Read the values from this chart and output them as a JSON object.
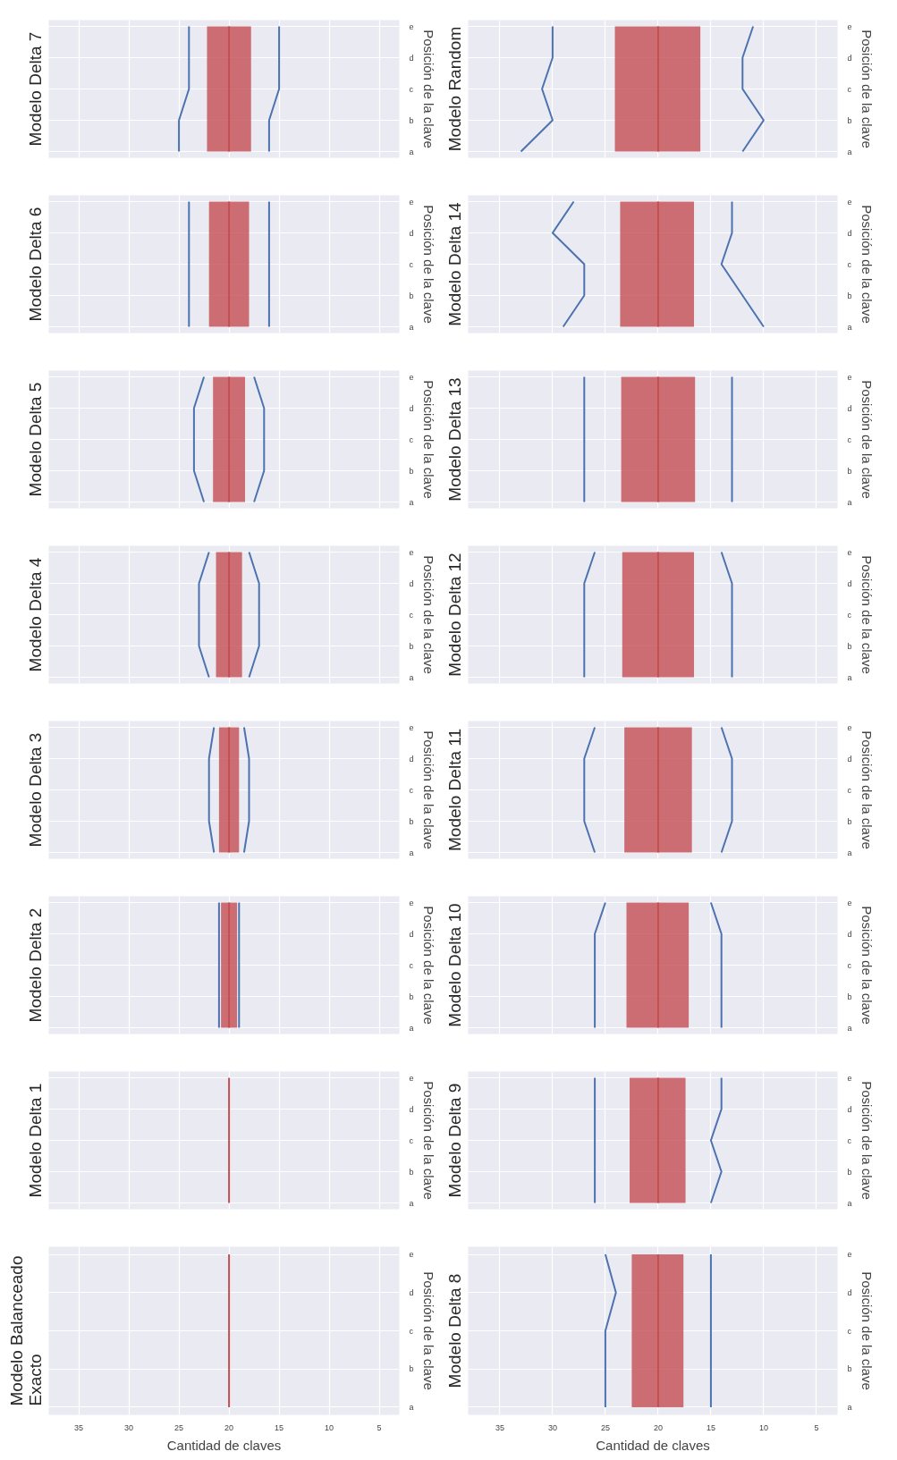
{
  "chart_data": [
    {
      "type": "line",
      "orientation": "horizontal",
      "title": "Modelo Balanceado Exacto",
      "xlabel": "Cantidad de claves",
      "ylabel": "Posición de la clave",
      "categories": [
        "e",
        "d",
        "c",
        "b",
        "a"
      ],
      "xlim": [
        38,
        3
      ],
      "xticks": [
        35,
        30,
        25,
        20,
        15,
        10,
        5
      ],
      "grid": true,
      "series": [
        {
          "color": "#c44e52",
          "values": [
            20,
            20,
            20,
            20,
            20
          ]
        }
      ]
    },
    {
      "type": "line",
      "orientation": "horizontal",
      "title": "Modelo Delta 1",
      "ylabel": "Posición de la clave",
      "categories": [
        "e",
        "d",
        "c",
        "b",
        "a"
      ],
      "xlim": [
        38,
        3
      ],
      "xticks": [
        35,
        30,
        25,
        20,
        15,
        10,
        5
      ],
      "grid": true,
      "tick_labels": "y",
      "series": [
        {
          "color": "#c44e52",
          "values": [
            20,
            20,
            20,
            20,
            20
          ]
        }
      ]
    },
    {
      "type": "line",
      "orientation": "horizontal",
      "title": "Modelo Delta 2",
      "ylabel": "Posición de la clave",
      "categories": [
        "e",
        "d",
        "c",
        "b",
        "a"
      ],
      "xlim": [
        38,
        3
      ],
      "xticks": [
        35,
        30,
        25,
        20,
        15,
        10,
        5
      ],
      "grid": true,
      "tick_labels": "y",
      "series": [
        {
          "color": "#c44e52",
          "values": [
            20,
            20,
            20,
            20,
            20
          ],
          "lower": [
            19.2,
            19.2,
            19.2,
            19.2,
            19.2
          ],
          "upper": [
            20.8,
            20.8,
            20.8,
            20.8,
            20.8
          ]
        },
        {
          "color": "#4c72b0",
          "values": [
            21,
            21,
            21,
            21,
            21
          ]
        },
        {
          "color": "#4c72b0",
          "values": [
            19,
            19,
            19,
            19,
            19
          ]
        }
      ]
    },
    {
      "type": "line",
      "orientation": "horizontal",
      "title": "Modelo Delta 3",
      "ylabel": "Posición de la clave",
      "categories": [
        "e",
        "d",
        "c",
        "b",
        "a"
      ],
      "xlim": [
        38,
        3
      ],
      "xticks": [
        35,
        30,
        25,
        20,
        15,
        10,
        5
      ],
      "grid": true,
      "tick_labels": "y",
      "series": [
        {
          "color": "#c44e52",
          "values": [
            20,
            20,
            20,
            20,
            20
          ],
          "lower": [
            19,
            19,
            19,
            19,
            19
          ],
          "upper": [
            21,
            21,
            21,
            21,
            21
          ]
        },
        {
          "color": "#4c72b0",
          "values": [
            21.5,
            22,
            22,
            22,
            21.5
          ]
        },
        {
          "color": "#4c72b0",
          "values": [
            18.5,
            18,
            18,
            18,
            18.5
          ]
        }
      ]
    },
    {
      "type": "line",
      "orientation": "horizontal",
      "title": "Modelo Delta 4",
      "ylabel": "Posición de la clave",
      "categories": [
        "e",
        "d",
        "c",
        "b",
        "a"
      ],
      "xlim": [
        38,
        3
      ],
      "xticks": [
        35,
        30,
        25,
        20,
        15,
        10,
        5
      ],
      "grid": true,
      "tick_labels": "y",
      "series": [
        {
          "color": "#c44e52",
          "values": [
            20,
            20,
            20,
            20,
            20
          ],
          "lower": [
            18.7,
            18.7,
            18.7,
            18.7,
            18.7
          ],
          "upper": [
            21.3,
            21.3,
            21.3,
            21.3,
            21.3
          ]
        },
        {
          "color": "#4c72b0",
          "values": [
            22,
            23,
            23,
            23,
            22
          ]
        },
        {
          "color": "#4c72b0",
          "values": [
            18,
            17,
            17,
            17,
            18
          ]
        }
      ]
    },
    {
      "type": "line",
      "orientation": "horizontal",
      "title": "Modelo Delta 5",
      "ylabel": "Posición de la clave",
      "categories": [
        "e",
        "d",
        "c",
        "b",
        "a"
      ],
      "xlim": [
        38,
        3
      ],
      "xticks": [
        35,
        30,
        25,
        20,
        15,
        10,
        5
      ],
      "grid": true,
      "tick_labels": "y",
      "series": [
        {
          "color": "#c44e52",
          "values": [
            20,
            20,
            20,
            20,
            20
          ],
          "lower": [
            18.4,
            18.4,
            18.4,
            18.4,
            18.4
          ],
          "upper": [
            21.6,
            21.6,
            21.6,
            21.6,
            21.6
          ]
        },
        {
          "color": "#4c72b0",
          "values": [
            22.5,
            23.5,
            23.5,
            23.5,
            22.5
          ]
        },
        {
          "color": "#4c72b0",
          "values": [
            17.5,
            16.5,
            16.5,
            16.5,
            17.5
          ]
        }
      ]
    },
    {
      "type": "line",
      "orientation": "horizontal",
      "title": "Modelo Delta 6",
      "ylabel": "Posición de la clave",
      "categories": [
        "e",
        "d",
        "c",
        "b",
        "a"
      ],
      "xlim": [
        38,
        3
      ],
      "xticks": [
        35,
        30,
        25,
        20,
        15,
        10,
        5
      ],
      "grid": true,
      "tick_labels": "y",
      "series": [
        {
          "color": "#c44e52",
          "values": [
            20,
            20,
            20,
            20,
            20
          ],
          "lower": [
            18,
            18,
            18,
            18,
            18
          ],
          "upper": [
            22,
            22,
            22,
            22,
            22
          ]
        },
        {
          "color": "#4c72b0",
          "values": [
            24,
            24,
            24,
            24,
            24
          ]
        },
        {
          "color": "#4c72b0",
          "values": [
            16,
            16,
            16,
            16,
            16
          ]
        }
      ]
    },
    {
      "type": "line",
      "orientation": "horizontal",
      "title": "Modelo Delta 7",
      "ylabel": "Posición de la clave",
      "categories": [
        "e",
        "d",
        "c",
        "b",
        "a"
      ],
      "xlim": [
        38,
        3
      ],
      "xticks": [
        35,
        30,
        25,
        20,
        15,
        10,
        5
      ],
      "grid": true,
      "tick_labels": "y",
      "series": [
        {
          "color": "#c44e52",
          "values": [
            20,
            20,
            20,
            20,
            20
          ],
          "lower": [
            17.8,
            17.8,
            17.8,
            17.8,
            17.8
          ],
          "upper": [
            22.2,
            22.2,
            22.2,
            22.2,
            22.2
          ]
        },
        {
          "color": "#4c72b0",
          "values": [
            24,
            24,
            24,
            25,
            25
          ]
        },
        {
          "color": "#4c72b0",
          "values": [
            15,
            15,
            15,
            16,
            16
          ]
        }
      ]
    },
    {
      "type": "line",
      "orientation": "horizontal",
      "title": "Modelo Delta 8",
      "xlabel": "Cantidad de claves",
      "ylabel": "Posición de la clave",
      "categories": [
        "e",
        "d",
        "c",
        "b",
        "a"
      ],
      "xlim": [
        38,
        3
      ],
      "xticks": [
        35,
        30,
        25,
        20,
        15,
        10,
        5
      ],
      "grid": true,
      "series": [
        {
          "color": "#c44e52",
          "values": [
            20,
            20,
            20,
            20,
            20
          ],
          "lower": [
            17.6,
            17.6,
            17.6,
            17.6,
            17.6
          ],
          "upper": [
            22.5,
            22.5,
            22.5,
            22.5,
            22.5
          ]
        },
        {
          "color": "#4c72b0",
          "values": [
            25,
            24,
            25,
            25,
            25
          ]
        },
        {
          "color": "#4c72b0",
          "values": [
            15,
            15,
            15,
            15,
            15
          ]
        }
      ]
    },
    {
      "type": "line",
      "orientation": "horizontal",
      "title": "Modelo Delta 9",
      "ylabel": "Posición de la clave",
      "categories": [
        "e",
        "d",
        "c",
        "b",
        "a"
      ],
      "xlim": [
        38,
        3
      ],
      "xticks": [
        35,
        30,
        25,
        20,
        15,
        10,
        5
      ],
      "grid": true,
      "tick_labels": "y",
      "series": [
        {
          "color": "#c44e52",
          "values": [
            20,
            20,
            20,
            20,
            20
          ],
          "lower": [
            17.4,
            17.4,
            17.4,
            17.4,
            17.4
          ],
          "upper": [
            22.7,
            22.7,
            22.7,
            22.7,
            22.7
          ]
        },
        {
          "color": "#4c72b0",
          "values": [
            26,
            26,
            26,
            26,
            26
          ]
        },
        {
          "color": "#4c72b0",
          "values": [
            14,
            14,
            15,
            14,
            15
          ]
        }
      ]
    },
    {
      "type": "line",
      "orientation": "horizontal",
      "title": "Modelo Delta 10",
      "ylabel": "Posición de la clave",
      "categories": [
        "e",
        "d",
        "c",
        "b",
        "a"
      ],
      "xlim": [
        38,
        3
      ],
      "xticks": [
        35,
        30,
        25,
        20,
        15,
        10,
        5
      ],
      "grid": true,
      "tick_labels": "y",
      "series": [
        {
          "color": "#c44e52",
          "values": [
            20,
            20,
            20,
            20,
            20
          ],
          "lower": [
            17.1,
            17.1,
            17.1,
            17.1,
            17.1
          ],
          "upper": [
            23,
            23,
            23,
            23,
            23
          ]
        },
        {
          "color": "#4c72b0",
          "values": [
            25,
            26,
            26,
            26,
            26
          ]
        },
        {
          "color": "#4c72b0",
          "values": [
            15,
            14,
            14,
            14,
            14
          ]
        }
      ]
    },
    {
      "type": "line",
      "orientation": "horizontal",
      "title": "Modelo Delta 11",
      "ylabel": "Posición de la clave",
      "categories": [
        "e",
        "d",
        "c",
        "b",
        "a"
      ],
      "xlim": [
        38,
        3
      ],
      "xticks": [
        35,
        30,
        25,
        20,
        15,
        10,
        5
      ],
      "grid": true,
      "tick_labels": "y",
      "series": [
        {
          "color": "#c44e52",
          "values": [
            20,
            20,
            20,
            20,
            20
          ],
          "lower": [
            16.8,
            16.8,
            16.8,
            16.8,
            16.8
          ],
          "upper": [
            23.2,
            23.2,
            23.2,
            23.2,
            23.2
          ]
        },
        {
          "color": "#4c72b0",
          "values": [
            26,
            27,
            27,
            27,
            26
          ]
        },
        {
          "color": "#4c72b0",
          "values": [
            14,
            13,
            13,
            13,
            14
          ]
        }
      ]
    },
    {
      "type": "line",
      "orientation": "horizontal",
      "title": "Modelo Delta 12",
      "ylabel": "Posición de la clave",
      "categories": [
        "e",
        "d",
        "c",
        "b",
        "a"
      ],
      "xlim": [
        38,
        3
      ],
      "xticks": [
        35,
        30,
        25,
        20,
        15,
        10,
        5
      ],
      "grid": true,
      "tick_labels": "y",
      "series": [
        {
          "color": "#c44e52",
          "values": [
            20,
            20,
            20,
            20,
            20
          ],
          "lower": [
            16.6,
            16.6,
            16.6,
            16.6,
            16.6
          ],
          "upper": [
            23.4,
            23.4,
            23.4,
            23.4,
            23.4
          ]
        },
        {
          "color": "#4c72b0",
          "values": [
            26,
            27,
            27,
            27,
            27
          ]
        },
        {
          "color": "#4c72b0",
          "values": [
            14,
            13,
            13,
            13,
            13
          ]
        }
      ]
    },
    {
      "type": "line",
      "orientation": "horizontal",
      "title": "Modelo Delta 13",
      "ylabel": "Posición de la clave",
      "categories": [
        "e",
        "d",
        "c",
        "b",
        "a"
      ],
      "xlim": [
        38,
        3
      ],
      "xticks": [
        35,
        30,
        25,
        20,
        15,
        10,
        5
      ],
      "grid": true,
      "tick_labels": "y",
      "series": [
        {
          "color": "#c44e52",
          "values": [
            20,
            20,
            20,
            20,
            20
          ],
          "lower": [
            16.5,
            16.5,
            16.5,
            16.5,
            16.5
          ],
          "upper": [
            23.5,
            23.5,
            23.5,
            23.5,
            23.5
          ]
        },
        {
          "color": "#4c72b0",
          "values": [
            27,
            27,
            27,
            27,
            27
          ]
        },
        {
          "color": "#4c72b0",
          "values": [
            13,
            13,
            13,
            13,
            13
          ]
        }
      ]
    },
    {
      "type": "line",
      "orientation": "horizontal",
      "title": "Modelo Delta 14",
      "ylabel": "Posición de la clave",
      "categories": [
        "e",
        "d",
        "c",
        "b",
        "a"
      ],
      "xlim": [
        38,
        3
      ],
      "xticks": [
        35,
        30,
        25,
        20,
        15,
        10,
        5
      ],
      "grid": true,
      "tick_labels": "y",
      "series": [
        {
          "color": "#c44e52",
          "values": [
            20,
            20,
            20,
            20,
            20
          ],
          "lower": [
            16.6,
            16.6,
            16.6,
            16.6,
            16.6
          ],
          "upper": [
            23.6,
            23.6,
            23.6,
            23.6,
            23.6
          ]
        },
        {
          "color": "#4c72b0",
          "values": [
            28,
            30,
            27,
            27,
            29
          ]
        },
        {
          "color": "#4c72b0",
          "values": [
            13,
            13,
            14,
            12,
            10
          ]
        }
      ]
    },
    {
      "type": "line",
      "orientation": "horizontal",
      "title": "Modelo Random",
      "ylabel": "Posición de la clave",
      "categories": [
        "e",
        "d",
        "c",
        "b",
        "a"
      ],
      "xlim": [
        38,
        3
      ],
      "xticks": [
        35,
        30,
        25,
        20,
        15,
        10,
        5
      ],
      "grid": true,
      "tick_labels": "y",
      "series": [
        {
          "color": "#c44e52",
          "values": [
            20,
            20,
            20,
            20,
            20
          ],
          "lower": [
            16,
            16,
            16,
            16,
            16
          ],
          "upper": [
            24.1,
            24.1,
            24.1,
            24.1,
            24.1
          ]
        },
        {
          "color": "#4c72b0",
          "values": [
            30,
            30,
            31,
            30,
            33
          ]
        },
        {
          "color": "#4c72b0",
          "values": [
            11,
            12,
            12,
            10,
            12
          ]
        }
      ]
    }
  ]
}
